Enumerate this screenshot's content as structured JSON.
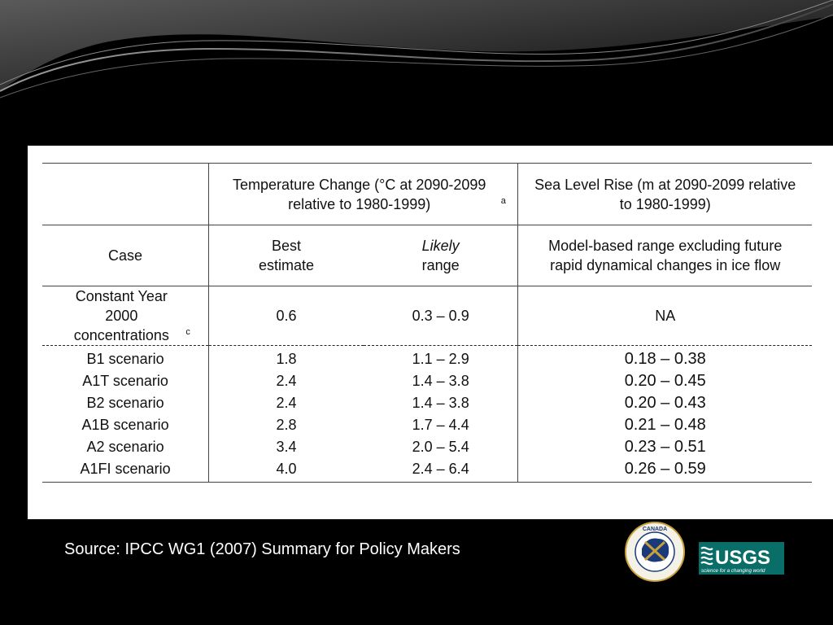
{
  "table": {
    "temp_header": "Temperature Change (°C at 2090-2099 relative to 1980-1999)",
    "temp_header_note": "a",
    "sea_header": "Sea Level Rise (m at 2090-2099 relative to 1980-1999)",
    "case_label": "Case",
    "best_label": "Best estimate",
    "likely_label": "Likely",
    "range_label": "range",
    "model_label": "Model-based range excluding future rapid dynamical changes in ice flow",
    "constant": {
      "case": "Constant Year 2000 concentrations",
      "note": "c",
      "best": "0.6",
      "likely": "0.3 – 0.9",
      "sea": "NA"
    },
    "rows": [
      {
        "case": "B1 scenario",
        "best": "1.8",
        "likely": "1.1 – 2.9",
        "sea": "0.18 – 0.38"
      },
      {
        "case": "A1T scenario",
        "best": "2.4",
        "likely": "1.4 – 3.8",
        "sea": "0.20 – 0.45"
      },
      {
        "case": "B2 scenario",
        "best": "2.4",
        "likely": "1.4 – 3.8",
        "sea": "0.20 – 0.43"
      },
      {
        "case": "A1B scenario",
        "best": "2.8",
        "likely": "1.7 – 4.4",
        "sea": "0.21 – 0.48"
      },
      {
        "case": "A2 scenario",
        "best": "3.4",
        "likely": "2.0 – 5.4",
        "sea": "0.23 – 0.51"
      },
      {
        "case": "A1FI scenario",
        "best": "4.0",
        "likely": "2.4 – 6.4",
        "sea": "0.26 – 0.59"
      }
    ]
  },
  "source": "Source: IPCC WG1 (2007) Summary for Policy Makers",
  "logos": {
    "gsc_text": "CANADA",
    "usgs_text": "USGS",
    "usgs_tagline": "science for a changing world"
  }
}
